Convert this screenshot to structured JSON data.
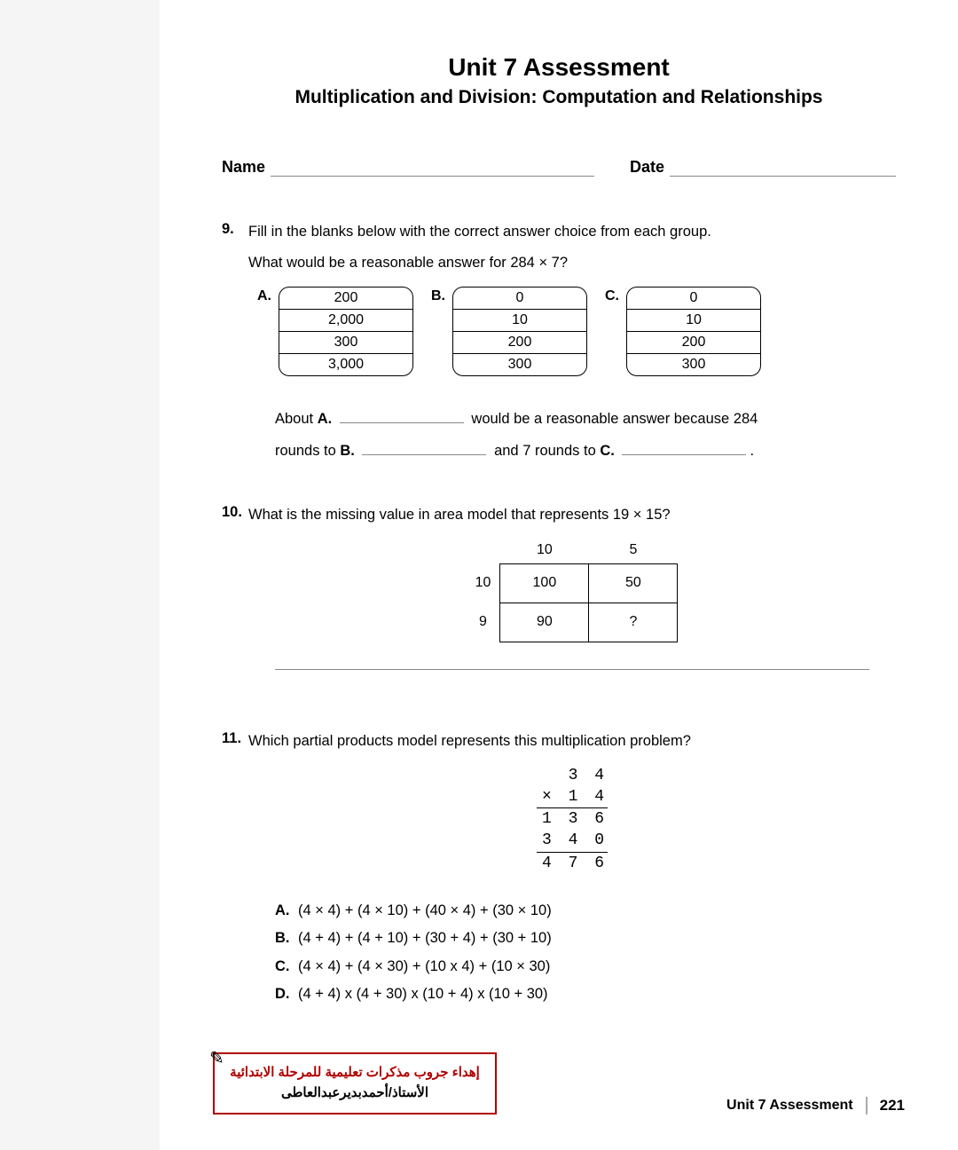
{
  "title": "Unit 7 Assessment",
  "subtitle": "Multiplication and Division: Computation and Relationships",
  "nameLabel": "Name",
  "dateLabel": "Date",
  "q9": {
    "num": "9.",
    "instruction": "Fill in the blanks below with the correct answer choice from each group.",
    "prompt": "What would be a reasonable answer for 284 × 7?",
    "groups": [
      {
        "label": "A.",
        "items": [
          "200",
          "2,000",
          "300",
          "3,000"
        ]
      },
      {
        "label": "B.",
        "items": [
          "0",
          "10",
          "200",
          "300"
        ]
      },
      {
        "label": "C.",
        "items": [
          "0",
          "10",
          "200",
          "300"
        ]
      }
    ],
    "s1a": "About ",
    "s1b": "A.",
    "s1c": " would be a reasonable answer because 284",
    "s2a": "rounds to ",
    "s2b": "B.",
    "s2c": " and 7 rounds to ",
    "s2d": "C.",
    "s2e": "."
  },
  "q10": {
    "num": "10.",
    "prompt": "What is the missing value in area model that represents 19 × 15?",
    "colHeaders": [
      "10",
      "5"
    ],
    "rowHeaders": [
      "10",
      "9"
    ],
    "cells": [
      [
        "100",
        "50"
      ],
      [
        "90",
        "?"
      ]
    ]
  },
  "q11": {
    "num": "11.",
    "prompt": "Which partial products model represents this multiplication problem?",
    "stack": [
      "3 4",
      "× 1 4",
      "1 3 6",
      "3 4 0",
      "4 7 6"
    ],
    "answers": [
      {
        "l": "A.",
        "t": "(4 × 4) + (4 × 10) + (40 × 4) + (30 × 10)"
      },
      {
        "l": "B.",
        "t": "(4 + 4) + (4 + 10) + (30 + 4) + (30 + 10)"
      },
      {
        "l": "C.",
        "t": "(4 × 4) + (4 × 30) + (10 x 4) + (10 × 30)"
      },
      {
        "l": "D.",
        "t": "(4 + 4) x (4 + 30) x (10 + 4) x (10 + 30)"
      }
    ]
  },
  "credit": {
    "line1": "إهداء جروب مذكرات تعليمية للمرحلة الابتدائية",
    "line2": "الأستاذ/أحمدبديرعبدالعاطى"
  },
  "footer": {
    "title": "Unit 7 Assessment",
    "page": "221"
  }
}
